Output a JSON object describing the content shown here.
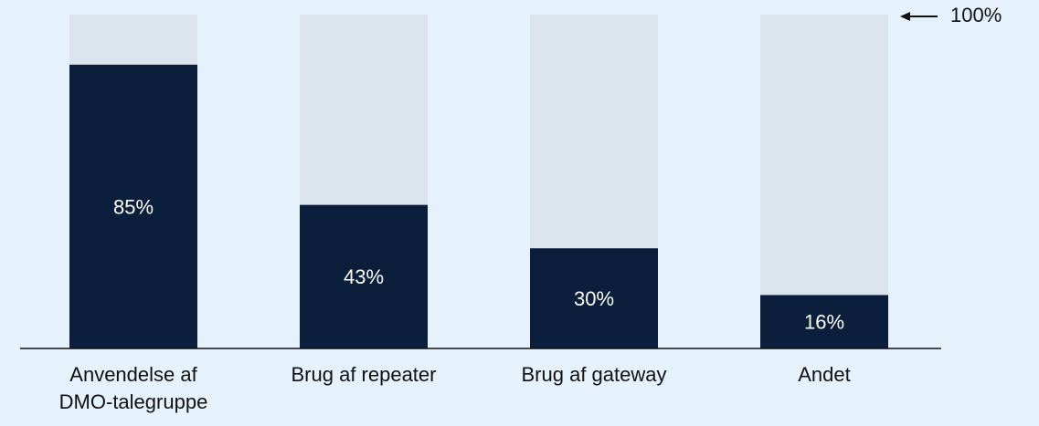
{
  "chart_data": {
    "type": "bar",
    "categories": [
      "Anvendelse af DMO-talegruppe",
      "Brug af repeater",
      "Brug af gateway",
      "Andet"
    ],
    "values": [
      85,
      43,
      30,
      16
    ],
    "value_labels": [
      "85%",
      "43%",
      "30%",
      "16%"
    ],
    "color": "#0b1f3d",
    "track_color": "#dce4ee",
    "background": "#e5f1fb",
    "ylim": [
      0,
      100
    ],
    "annotation": "100%"
  }
}
